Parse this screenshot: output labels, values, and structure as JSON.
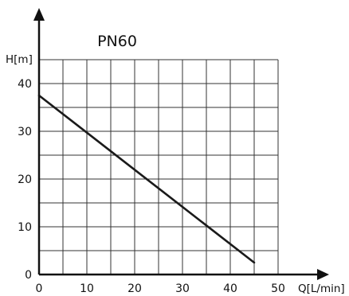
{
  "chart_data": {
    "type": "line",
    "title": "PN60",
    "xlabel": "Q[L/min]",
    "ylabel": "H[m]",
    "xlim": [
      0,
      50
    ],
    "ylim": [
      0,
      45
    ],
    "x_ticks": [
      0,
      10,
      20,
      30,
      40,
      50
    ],
    "y_ticks": [
      0,
      10,
      20,
      30,
      40
    ],
    "grid": true,
    "series": [
      {
        "x": [
          0,
          45
        ],
        "y": [
          37.5,
          2.5
        ]
      }
    ],
    "colors": {
      "line": "#1a1a1a",
      "grid": "#333333",
      "axis": "#111111"
    }
  }
}
